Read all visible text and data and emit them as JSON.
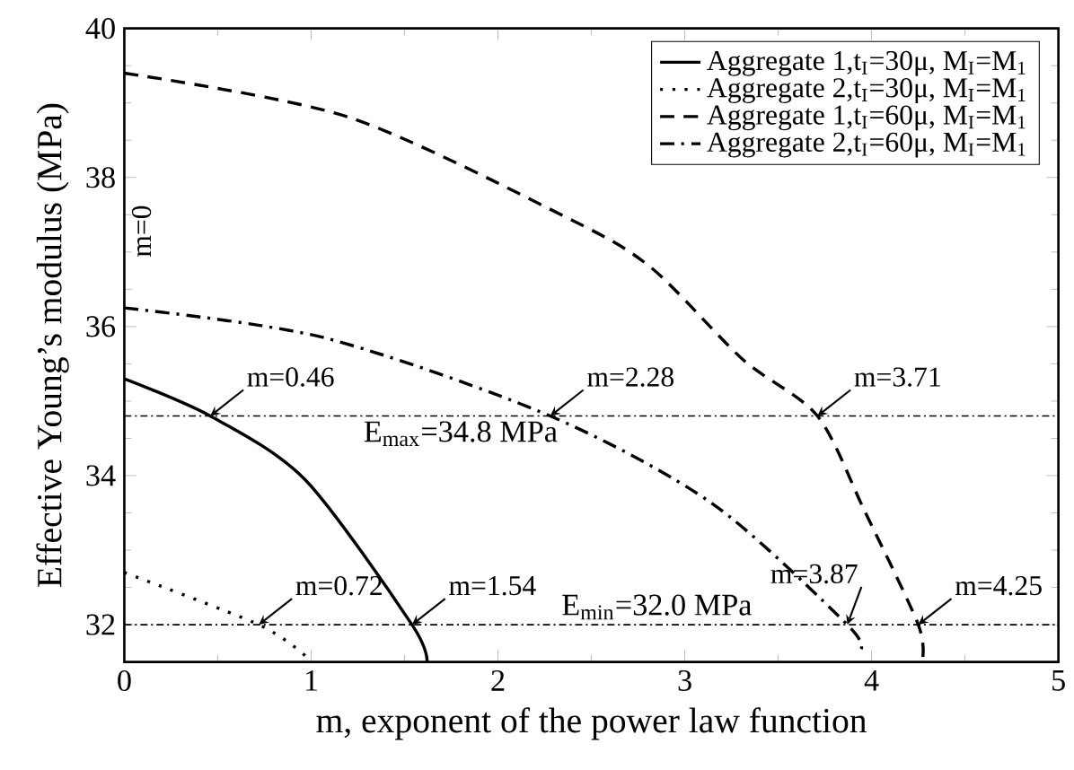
{
  "chart_data": {
    "type": "line",
    "xlabel": "m, exponent of the power law function",
    "ylabel": "Effective Young’s modulus (MPa)",
    "xlim": [
      0,
      5
    ],
    "ylim": [
      31.5,
      40
    ],
    "xticks": [
      0,
      1,
      2,
      3,
      4,
      5
    ],
    "yticks": [
      32,
      34,
      36,
      38,
      40
    ],
    "grid": false,
    "legend": "top right",
    "marker": "none",
    "series": [
      {
        "name": "Aggregate 1,t$_{I}$=30μ, M$_{I}$=M$_{1}$",
        "color": "#000000",
        "line_style": "solid",
        "x": [
          0,
          0.46,
          0.97,
          1.54,
          1.62
        ],
        "values": [
          35.3,
          34.8,
          33.94,
          32.0,
          31.5
        ]
      },
      {
        "name": "Aggregate 2,t$_{I}$=30μ, M$_{I}$=M$_{1}$",
        "color": "#000000",
        "line_style": "dotted",
        "x": [
          0,
          0.72,
          0.97
        ],
        "values": [
          32.7,
          32.0,
          31.58
        ]
      },
      {
        "name": "Aggregate 1,t$_{I}$=60μ, M$_{I}$=M$_{1}$",
        "color": "#000000",
        "line_style": "dashed",
        "x": [
          0,
          1.2,
          2.37,
          2.82,
          3.31,
          3.71,
          3.96,
          4.25,
          4.27
        ],
        "values": [
          39.4,
          38.81,
          37.46,
          36.79,
          35.56,
          34.8,
          33.54,
          32.0,
          31.5
        ]
      },
      {
        "name": "Aggregate 2,t$_{I}$=60μ, M$_{I}$=M$_{1}$",
        "color": "#000000",
        "line_style": "dashdot",
        "x": [
          0,
          1.07,
          2.28,
          3.15,
          3.87,
          3.94
        ],
        "values": [
          36.25,
          35.85,
          34.8,
          33.62,
          32.0,
          31.66
        ]
      }
    ],
    "ref_lines": [
      {
        "axis": "y",
        "value": 34.8,
        "label": "E$_{max}$=34.8 MPa",
        "color": "#000000",
        "line_style": "dashdot"
      },
      {
        "axis": "y",
        "value": 32.0,
        "label": "E$_{min}$=32.0 MPa",
        "color": "#000000",
        "line_style": "dashdot"
      }
    ],
    "annotations": [
      "m=0",
      {
        "text": "m=0.46",
        "x": 0.46,
        "y": 34.8
      },
      {
        "text": "m=2.28",
        "x": 2.28,
        "y": 34.8
      },
      {
        "text": "m=3.71",
        "x": 3.71,
        "y": 34.8
      },
      {
        "text": "m=0.72",
        "x": 0.72,
        "y": 32.0
      },
      {
        "text": "m=1.54",
        "x": 1.54,
        "y": 32.0
      },
      {
        "text": "m=3.87",
        "x": 3.87,
        "y": 32.0
      },
      {
        "text": "m=4.25",
        "x": 4.25,
        "y": 32.0
      }
    ]
  }
}
